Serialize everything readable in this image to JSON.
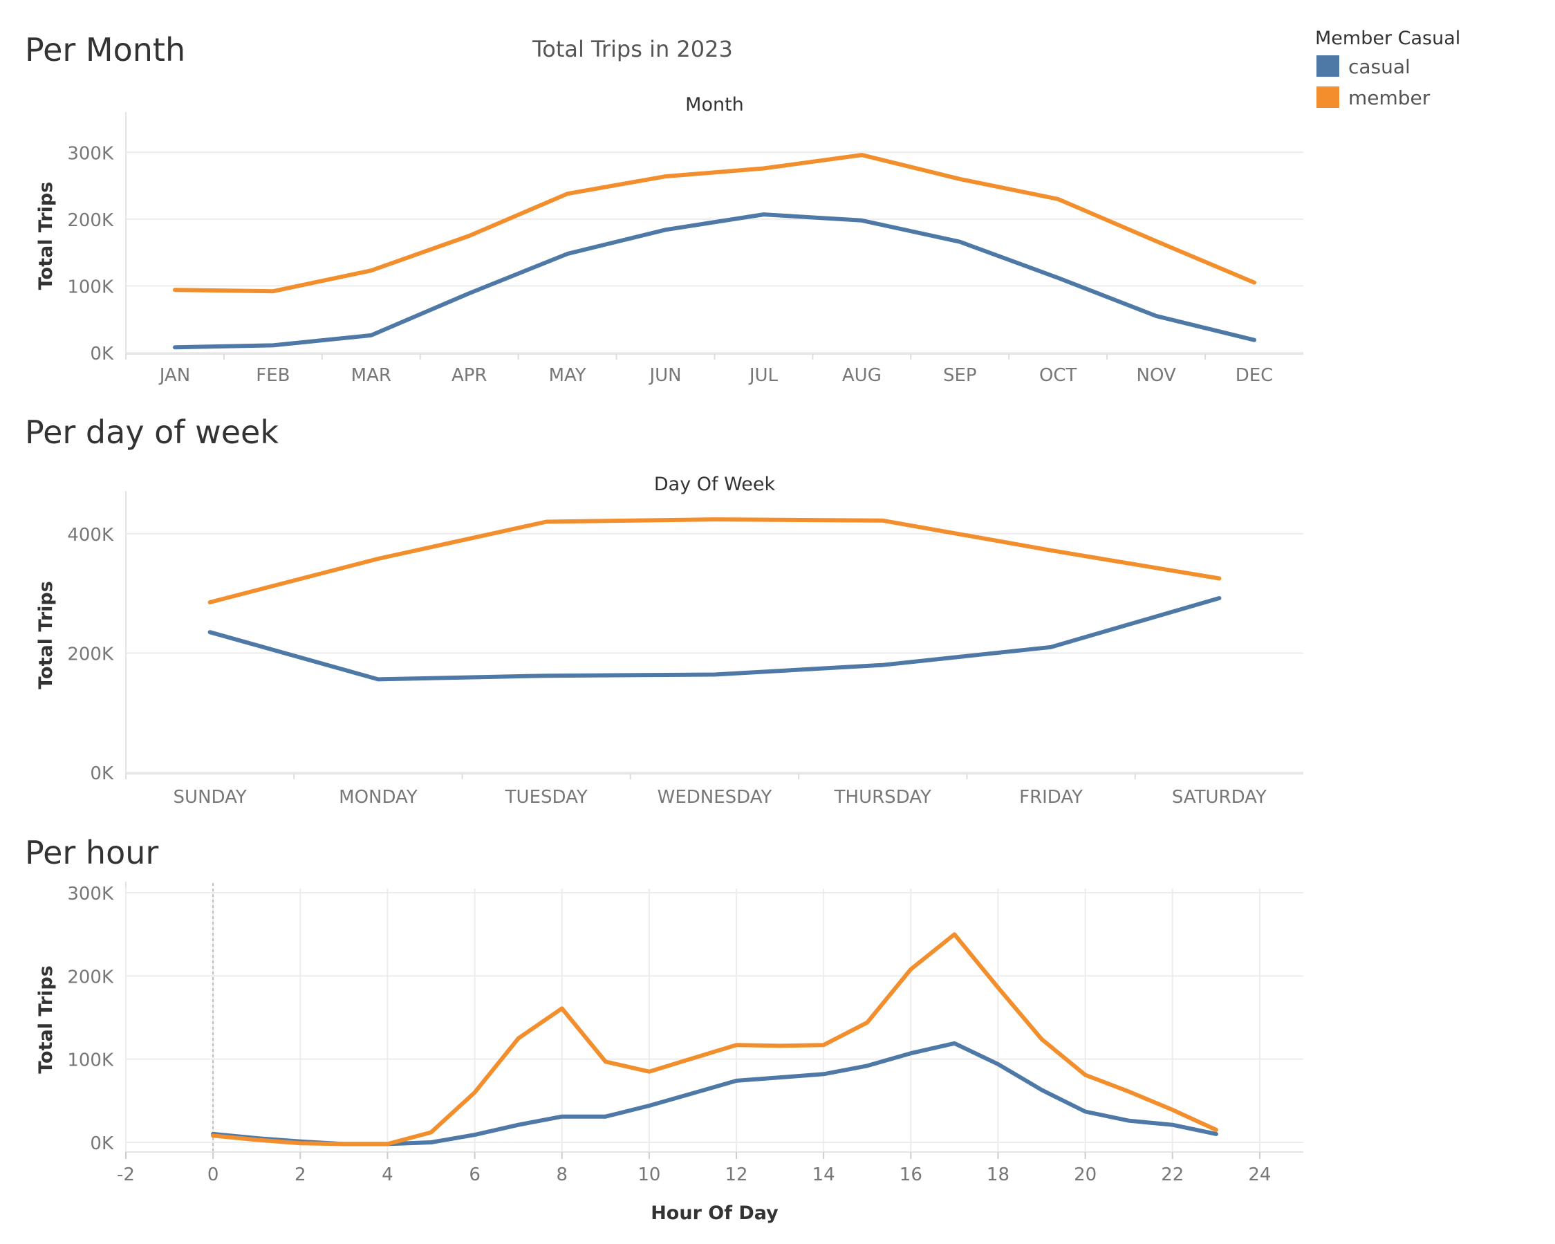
{
  "dashboard": {
    "title": "Total Trips in 2023"
  },
  "legend": {
    "title": "Member Casual",
    "items": [
      {
        "label": "casual",
        "color": "#4e79a7"
      },
      {
        "label": "member",
        "color": "#f28e2b"
      }
    ]
  },
  "colors": {
    "casual": "#4e79a7",
    "member": "#f28e2b",
    "grid": "#ebebeb",
    "axis_text": "#666666",
    "title_text": "#333333"
  },
  "sections": [
    {
      "heading": "Per Month"
    },
    {
      "heading": "Per day of week"
    },
    {
      "heading": "Per hour"
    }
  ],
  "chart_data": [
    {
      "type": "line",
      "title": "Month",
      "xlabel": "",
      "ylabel": "Total Trips",
      "categories": [
        "JAN",
        "FEB",
        "MAR",
        "APR",
        "MAY",
        "JUN",
        "JUL",
        "AUG",
        "SEP",
        "OCT",
        "NOV",
        "DEC"
      ],
      "ylim": [
        0,
        350000
      ],
      "yticks": [
        0,
        100000,
        200000,
        300000
      ],
      "ytick_labels": [
        "0K",
        "100K",
        "200K",
        "300K"
      ],
      "grid": true,
      "series": [
        {
          "name": "casual",
          "color": "#4e79a7",
          "values": [
            8000,
            11000,
            26000,
            89000,
            148000,
            184000,
            207000,
            198000,
            166000,
            112000,
            55000,
            19000
          ]
        },
        {
          "name": "member",
          "color": "#f28e2b",
          "values": [
            94000,
            92000,
            123000,
            175000,
            238000,
            264000,
            276000,
            296000,
            260000,
            230000,
            167000,
            105000
          ]
        }
      ]
    },
    {
      "type": "line",
      "title": "Day Of Week",
      "xlabel": "",
      "ylabel": "Total Trips",
      "categories": [
        "SUNDAY",
        "MONDAY",
        "TUESDAY",
        "WEDNESDAY",
        "THURSDAY",
        "FRIDAY",
        "SATURDAY"
      ],
      "ylim": [
        0,
        460000
      ],
      "yticks": [
        0,
        200000,
        400000
      ],
      "ytick_labels": [
        "0K",
        "200K",
        "400K"
      ],
      "grid": true,
      "series": [
        {
          "name": "casual",
          "color": "#4e79a7",
          "values": [
            235000,
            156000,
            162000,
            164000,
            180000,
            210000,
            292000
          ]
        },
        {
          "name": "member",
          "color": "#f28e2b",
          "values": [
            285000,
            358000,
            420000,
            424000,
            422000,
            372000,
            325000
          ]
        }
      ]
    },
    {
      "type": "line",
      "title": "",
      "xlabel": "Hour Of Day",
      "ylabel": "Total Trips",
      "x": [
        0,
        1,
        2,
        3,
        4,
        5,
        6,
        7,
        8,
        9,
        10,
        11,
        12,
        13,
        14,
        15,
        16,
        17,
        18,
        19,
        20,
        21,
        22,
        23
      ],
      "xlim": [
        -2,
        25
      ],
      "xticks": [
        -2,
        0,
        2,
        4,
        6,
        8,
        10,
        12,
        14,
        16,
        18,
        20,
        22,
        24
      ],
      "ylim": [
        -10000,
        305000
      ],
      "yticks": [
        0,
        100000,
        200000,
        300000
      ],
      "ytick_labels": [
        "0K",
        "100K",
        "200K",
        "300K"
      ],
      "grid": true,
      "series": [
        {
          "name": "casual",
          "color": "#4e79a7",
          "values": [
            10000,
            5000,
            1000,
            -2000,
            -2000,
            0,
            9000,
            21000,
            31000,
            31000,
            44000,
            59000,
            74000,
            78000,
            82000,
            92000,
            107000,
            119000,
            94000,
            63000,
            37000,
            26000,
            21000,
            10000
          ]
        },
        {
          "name": "member",
          "color": "#f28e2b",
          "values": [
            8000,
            3000,
            -1000,
            -2000,
            -2000,
            12000,
            60000,
            125000,
            161000,
            97000,
            85000,
            101000,
            117000,
            116000,
            117000,
            144000,
            208000,
            250000,
            186000,
            124000,
            81000,
            61000,
            39000,
            15000
          ]
        }
      ]
    }
  ]
}
